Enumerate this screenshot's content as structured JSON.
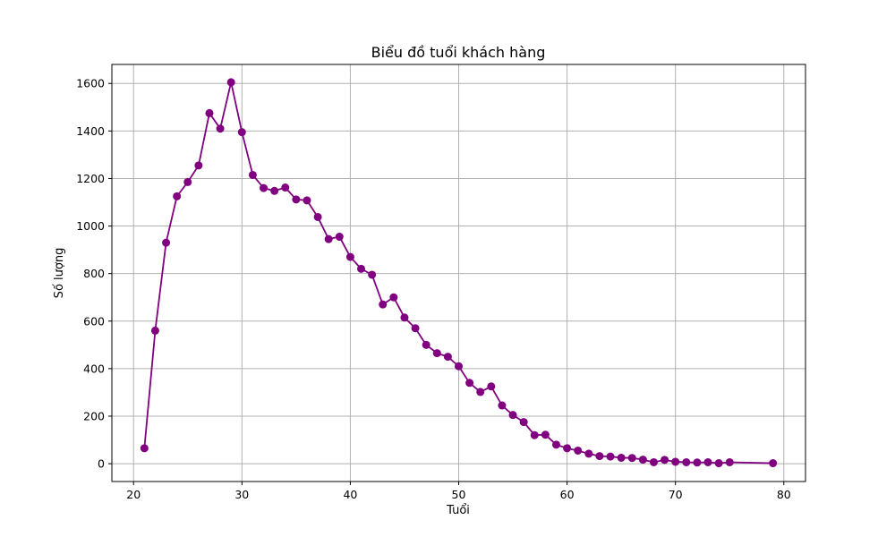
{
  "chart_data": {
    "type": "line",
    "title": "Biểu đồ tuổi khách hàng",
    "xlabel": "Tuổi",
    "ylabel": "Số lượng",
    "xlim": [
      18,
      82
    ],
    "ylim": [
      -75,
      1680
    ],
    "xticks": [
      20,
      30,
      40,
      50,
      60,
      70,
      80
    ],
    "yticks": [
      0,
      200,
      400,
      600,
      800,
      1000,
      1200,
      1400,
      1600
    ],
    "grid": true,
    "color": "#800080",
    "marker": "circle",
    "x": [
      21,
      22,
      23,
      24,
      25,
      26,
      27,
      28,
      29,
      30,
      31,
      32,
      33,
      34,
      35,
      36,
      37,
      38,
      39,
      40,
      41,
      42,
      43,
      44,
      45,
      46,
      47,
      48,
      49,
      50,
      51,
      52,
      53,
      54,
      55,
      56,
      57,
      58,
      59,
      60,
      61,
      62,
      63,
      64,
      65,
      66,
      67,
      68,
      69,
      70,
      71,
      72,
      73,
      74,
      75,
      79
    ],
    "y": [
      65,
      560,
      930,
      1125,
      1185,
      1255,
      1475,
      1410,
      1605,
      1395,
      1215,
      1160,
      1148,
      1162,
      1112,
      1108,
      1038,
      945,
      955,
      870,
      820,
      795,
      670,
      700,
      615,
      570,
      500,
      465,
      450,
      410,
      340,
      302,
      325,
      245,
      205,
      175,
      120,
      122,
      80,
      65,
      55,
      42,
      32,
      30,
      25,
      24,
      17,
      6,
      16,
      8,
      6,
      5,
      6,
      2,
      6,
      2
    ]
  }
}
